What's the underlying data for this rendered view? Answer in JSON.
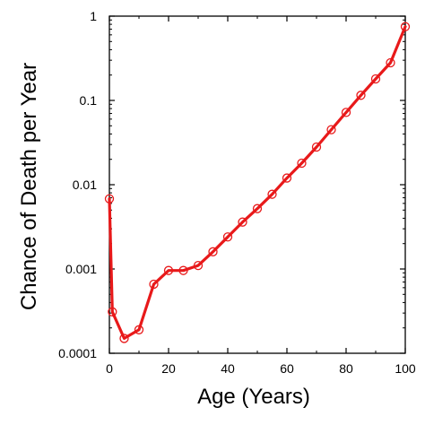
{
  "chart_data": {
    "type": "line",
    "xlabel": "Age (Years)",
    "ylabel": "Chance of Death per Year",
    "y_scale": "log",
    "xlim": [
      0,
      100
    ],
    "ylim": [
      0.0001,
      1
    ],
    "x_ticks": [
      0,
      20,
      40,
      60,
      80,
      100
    ],
    "x_tick_labels": [
      "0",
      "20",
      "40",
      "60",
      "80",
      "100"
    ],
    "y_ticks": [
      0.0001,
      0.001,
      0.01,
      0.1,
      1
    ],
    "y_tick_labels": [
      "0.0001",
      "0.001",
      "0.01",
      "0.1",
      "1"
    ],
    "grid": false,
    "color": "#e8191a",
    "series": [
      {
        "x": [
          0,
          1,
          5,
          10,
          15,
          20,
          25,
          30,
          35,
          40,
          45,
          50,
          55,
          60,
          65,
          70,
          75,
          80,
          85,
          90,
          95,
          100
        ],
        "y": [
          0.0068,
          0.00031,
          0.00015,
          0.00019,
          0.00066,
          0.00096,
          0.00096,
          0.0011,
          0.0016,
          0.0024,
          0.0036,
          0.0052,
          0.0077,
          0.012,
          0.018,
          0.028,
          0.045,
          0.072,
          0.115,
          0.18,
          0.28,
          0.75
        ]
      }
    ]
  }
}
